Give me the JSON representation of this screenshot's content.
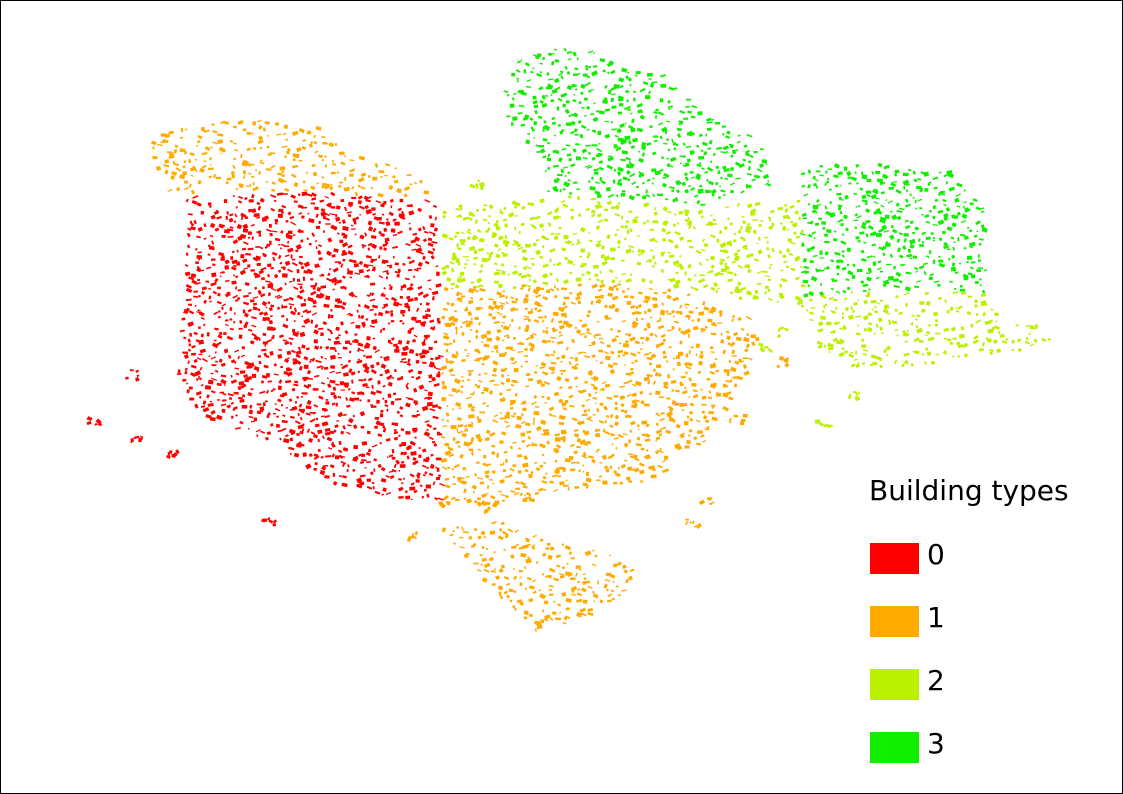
{
  "legend": {
    "title": "Building types",
    "items": [
      {
        "label": "0",
        "color": "#ff0000"
      },
      {
        "label": "1",
        "color": "#ffaa00"
      },
      {
        "label": "2",
        "color": "#bbf000"
      },
      {
        "label": "3",
        "color": "#11ee00"
      }
    ]
  }
}
